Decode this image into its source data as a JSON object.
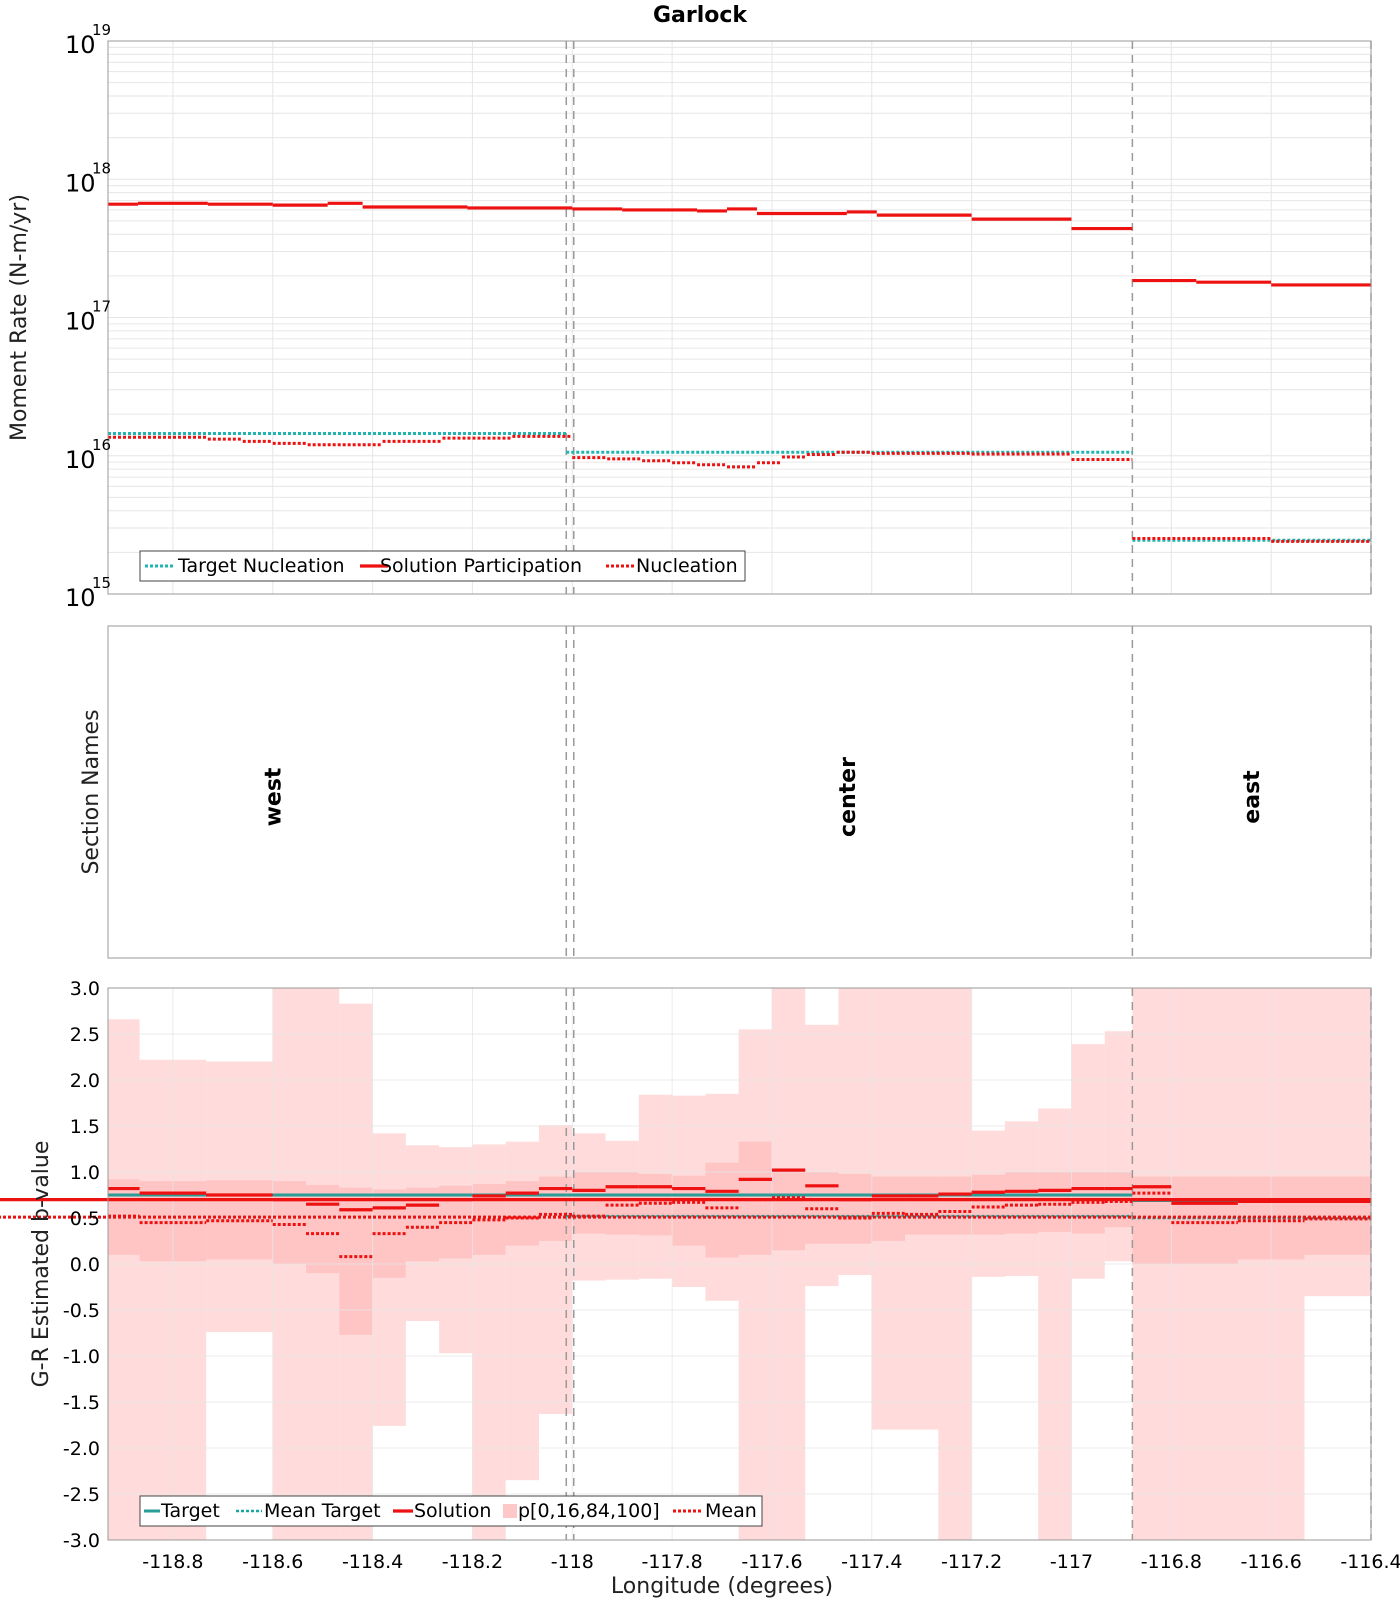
{
  "figure": {
    "title": "Garlock",
    "xlabel": "Longitude (degrees)"
  },
  "xaxis": {
    "range": [
      -118.93,
      -116.4
    ],
    "ticks": [
      -118.8,
      -118.6,
      -118.4,
      -118.2,
      -118,
      -117.8,
      -117.6,
      -117.4,
      -117.2,
      -117,
      -116.8,
      -116.6,
      -116.4
    ],
    "tick_labels": [
      "-118.8",
      "-118.6",
      "-118.4",
      "-118.2",
      "-118",
      "-117.8",
      "-117.6",
      "-117.4",
      "-117.2",
      "-117",
      "-116.8",
      "-116.6",
      "-116.4"
    ]
  },
  "section_boundaries": [
    -118.012,
    -117.997,
    -116.878,
    -116.4
  ],
  "colors": {
    "target": "#1fb5b0",
    "mean_target": "#1aa6a0",
    "solution": "#ee1111",
    "band": "#ffc8c8",
    "band_inner": "#ff9a9a",
    "boundary": "#9a9a9a",
    "grid": "#e6e6e6"
  },
  "chart_data": [
    {
      "id": "moment",
      "type": "line",
      "yscale": "log",
      "ylabel": "Moment Rate (N-m/yr)",
      "ylim": [
        1000000000000000.0,
        1e+19
      ],
      "ytick_labels": [
        {
          "base": "10",
          "exp": "15",
          "value": 1000000000000000.0
        },
        {
          "base": "10",
          "exp": "16",
          "value": 1e+16
        },
        {
          "base": "10",
          "exp": "17",
          "value": 1e+17
        },
        {
          "base": "10",
          "exp": "18",
          "value": 1e+18
        },
        {
          "base": "10",
          "exp": "19",
          "value": 1e+19
        }
      ],
      "legend": [
        "Target Nucleation",
        "Solution Participation",
        "Nucleation"
      ],
      "legend_position": "bottom-left",
      "series": [
        {
          "name": "Target Nucleation",
          "style": "dotted-teal",
          "segments": [
            {
              "x": [
                -118.93,
                -118.012
              ],
              "y": 1.45e+16
            },
            {
              "x": [
                -118.012,
                -116.878
              ],
              "y": 1.06e+16
            },
            {
              "x": [
                -116.878,
                -116.4
              ],
              "y": 2450000000000000.0
            }
          ]
        },
        {
          "name": "Solution Participation",
          "style": "solid-red",
          "steps": [
            {
              "x0": -118.93,
              "x1": -118.87,
              "y": 6.6e+17
            },
            {
              "x0": -118.87,
              "x1": -118.73,
              "y": 6.7e+17
            },
            {
              "x0": -118.73,
              "x1": -118.6,
              "y": 6.6e+17
            },
            {
              "x0": -118.6,
              "x1": -118.49,
              "y": 6.5e+17
            },
            {
              "x0": -118.49,
              "x1": -118.42,
              "y": 6.7e+17
            },
            {
              "x0": -118.42,
              "x1": -118.21,
              "y": 6.3e+17
            },
            {
              "x0": -118.21,
              "x1": -118.0,
              "y": 6.2e+17
            },
            {
              "x0": -118.0,
              "x1": -117.9,
              "y": 6.1e+17
            },
            {
              "x0": -117.9,
              "x1": -117.75,
              "y": 6e+17
            },
            {
              "x0": -117.75,
              "x1": -117.69,
              "y": 5.9e+17
            },
            {
              "x0": -117.69,
              "x1": -117.63,
              "y": 6.1e+17
            },
            {
              "x0": -117.63,
              "x1": -117.45,
              "y": 5.65e+17
            },
            {
              "x0": -117.45,
              "x1": -117.39,
              "y": 5.8e+17
            },
            {
              "x0": -117.39,
              "x1": -117.2,
              "y": 5.5e+17
            },
            {
              "x0": -117.2,
              "x1": -117.0,
              "y": 5.15e+17
            },
            {
              "x0": -117.0,
              "x1": -116.878,
              "y": 4.4e+17
            },
            {
              "x0": -116.878,
              "x1": -116.75,
              "y": 1.85e+17
            },
            {
              "x0": -116.75,
              "x1": -116.6,
              "y": 1.8e+17
            },
            {
              "x0": -116.6,
              "x1": -116.4,
              "y": 1.72e+17
            }
          ]
        },
        {
          "name": "Nucleation",
          "style": "dotted-red",
          "steps": [
            {
              "x0": -118.93,
              "x1": -118.73,
              "y": 1.36e+16
            },
            {
              "x0": -118.73,
              "x1": -118.66,
              "y": 1.32e+16
            },
            {
              "x0": -118.66,
              "x1": -118.6,
              "y": 1.27e+16
            },
            {
              "x0": -118.6,
              "x1": -118.53,
              "y": 1.23e+16
            },
            {
              "x0": -118.53,
              "x1": -118.38,
              "y": 1.2e+16
            },
            {
              "x0": -118.38,
              "x1": -118.26,
              "y": 1.27e+16
            },
            {
              "x0": -118.26,
              "x1": -118.12,
              "y": 1.34e+16
            },
            {
              "x0": -118.12,
              "x1": -118.0,
              "y": 1.38e+16
            },
            {
              "x0": -118.0,
              "x1": -117.93,
              "y": 9700000000000000.0
            },
            {
              "x0": -117.93,
              "x1": -117.86,
              "y": 9500000000000000.0
            },
            {
              "x0": -117.86,
              "x1": -117.8,
              "y": 9200000000000000.0
            },
            {
              "x0": -117.8,
              "x1": -117.75,
              "y": 8900000000000000.0
            },
            {
              "x0": -117.75,
              "x1": -117.69,
              "y": 8600000000000000.0
            },
            {
              "x0": -117.69,
              "x1": -117.63,
              "y": 8300000000000000.0
            },
            {
              "x0": -117.63,
              "x1": -117.58,
              "y": 8900000000000000.0
            },
            {
              "x0": -117.58,
              "x1": -117.53,
              "y": 9800000000000000.0
            },
            {
              "x0": -117.53,
              "x1": -117.47,
              "y": 1.02e+16
            },
            {
              "x0": -117.47,
              "x1": -117.4,
              "y": 1.06e+16
            },
            {
              "x0": -117.4,
              "x1": -117.2,
              "y": 1.04e+16
            },
            {
              "x0": -117.2,
              "x1": -117.0,
              "y": 1.03e+16
            },
            {
              "x0": -117.0,
              "x1": -116.878,
              "y": 9400000000000000.0
            },
            {
              "x0": -116.878,
              "x1": -116.6,
              "y": 2520000000000000.0
            },
            {
              "x0": -116.6,
              "x1": -116.4,
              "y": 2400000000000000.0
            }
          ]
        }
      ]
    },
    {
      "id": "sections",
      "type": "table",
      "ylabel": "Section Names",
      "sections": [
        {
          "name": "west",
          "x": -118.6
        },
        {
          "name": "center",
          "x": -117.45
        },
        {
          "name": "east",
          "x": -116.64
        }
      ]
    },
    {
      "id": "bvalue",
      "type": "area",
      "ylabel": "G-R Estimated b-value",
      "ylim": [
        -3.0,
        3.0
      ],
      "yticks": [
        -3.0,
        -2.5,
        -2.0,
        -1.5,
        -1.0,
        -0.5,
        0.0,
        0.5,
        1.0,
        1.5,
        2.0,
        2.5,
        3.0
      ],
      "ytick_labels": [
        "-3.0",
        "-2.5",
        "-2.0",
        "-1.5",
        "-1.0",
        "-0.5",
        "0.0",
        "0.5",
        "1.0",
        "1.5",
        "2.0",
        "2.5",
        "3.0"
      ],
      "legend": [
        "Target",
        "Mean Target",
        "Solution",
        "p[0,16,84,100]",
        "Mean"
      ],
      "legend_position": "bottom-left",
      "bins": [
        -118.93,
        -118.8667,
        -118.7333,
        -118.6,
        -118.5333,
        -118.4667,
        -118.4,
        -118.3333,
        -118.2667,
        -118.2,
        -118.1333,
        -118.0667,
        -118.0,
        -117.9333,
        -117.8667,
        -117.8,
        -117.7333,
        -117.6667,
        -117.6,
        -117.5333,
        -117.4667,
        -117.4,
        -117.3333,
        -117.2667,
        -117.2,
        -117.1333,
        -117.0667,
        -117.0,
        -116.9333,
        -116.878,
        -116.8,
        -116.6667,
        -116.5333,
        -116.4
      ],
      "p0": [
        -3.0,
        -3.0,
        -0.74,
        -3.0,
        -3.0,
        -3.0,
        -1.76,
        -0.62,
        -0.97,
        -3.0,
        -2.35,
        -1.63,
        -0.18,
        -0.17,
        -0.16,
        -0.25,
        -0.4,
        -3.0,
        -3.0,
        -0.24,
        -0.12,
        -1.8,
        -1.8,
        -3.0,
        -0.14,
        -0.13,
        -3.0,
        -0.16,
        0.03,
        -3.0,
        -3.0,
        -3.0,
        -0.35,
        -0.17
      ],
      "p16": [
        0.1,
        0.03,
        0.05,
        0.0,
        -0.1,
        -0.77,
        -0.15,
        0.03,
        0.06,
        0.1,
        0.2,
        0.25,
        0.33,
        0.32,
        0.31,
        0.2,
        0.07,
        0.1,
        0.15,
        0.22,
        0.22,
        0.25,
        0.32,
        0.32,
        0.32,
        0.33,
        0.35,
        0.33,
        0.4,
        0.0,
        0.0,
        0.05,
        0.1,
        0.15
      ],
      "p84": [
        0.92,
        0.9,
        0.91,
        0.9,
        0.86,
        0.83,
        0.81,
        0.83,
        0.85,
        0.87,
        0.9,
        0.95,
        1.0,
        1.0,
        0.98,
        0.96,
        1.1,
        1.33,
        1.04,
        1.0,
        0.98,
        0.95,
        0.95,
        0.95,
        0.97,
        1.0,
        1.0,
        1.0,
        1.0,
        0.95,
        0.95,
        0.95,
        0.95,
        0.95
      ],
      "p100": [
        2.66,
        2.22,
        2.2,
        3.0,
        3.0,
        2.83,
        1.42,
        1.29,
        1.27,
        1.3,
        1.33,
        1.51,
        1.42,
        1.34,
        1.84,
        1.83,
        1.85,
        2.55,
        3.0,
        2.6,
        3.0,
        3.0,
        3.0,
        3.0,
        1.45,
        1.55,
        1.69,
        2.39,
        2.53,
        3.0,
        3.0,
        3.0,
        3.0,
        3.0
      ],
      "solution": [
        0.82,
        0.77,
        0.75,
        0.7,
        0.65,
        0.59,
        0.61,
        0.64,
        0.7,
        0.74,
        0.77,
        0.82,
        0.8,
        0.84,
        0.84,
        0.82,
        0.79,
        0.92,
        1.02,
        0.85,
        0.7,
        0.74,
        0.74,
        0.76,
        0.78,
        0.79,
        0.8,
        0.82,
        0.82,
        0.84,
        0.66,
        0.68,
        0.68,
        0.7
      ],
      "mean": [
        0.52,
        0.45,
        0.47,
        0.43,
        0.33,
        0.08,
        0.33,
        0.4,
        0.45,
        0.48,
        0.5,
        0.54,
        0.52,
        0.64,
        0.66,
        0.67,
        0.61,
        0.7,
        0.72,
        0.6,
        0.5,
        0.55,
        0.54,
        0.57,
        0.62,
        0.64,
        0.65,
        0.67,
        0.68,
        0.77,
        0.45,
        0.47,
        0.49,
        0.51
      ],
      "target": [
        {
          "x": [
            -118.93,
            -118.012
          ],
          "y": 0.75
        },
        {
          "x": [
            -118.012,
            -116.878
          ],
          "y": 0.75
        },
        {
          "x": [
            -116.878,
            -116.4
          ],
          "y": 0.69
        }
      ],
      "mean_target": [
        {
          "x": [
            -118.93,
            -118.012
          ],
          "y": 0.51
        },
        {
          "x": [
            -118.012,
            -116.878
          ],
          "y": 0.52
        },
        {
          "x": [
            -116.878,
            -116.4
          ],
          "y": 0.5
        }
      ]
    }
  ]
}
